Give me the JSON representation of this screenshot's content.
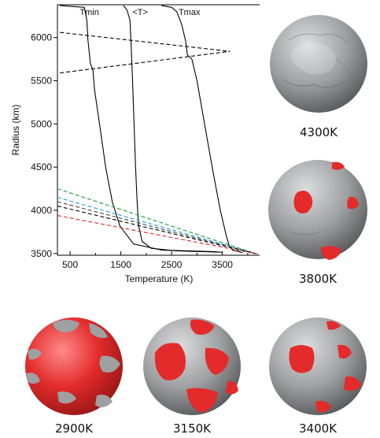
{
  "chart_data": {
    "type": "line",
    "xlabel": "Temperature (K)",
    "ylabel": "Radius (km)",
    "xlim": [
      250,
      4250
    ],
    "ylim": [
      3480,
      6380
    ],
    "x_ticks": [
      500,
      1500,
      2500,
      3500
    ],
    "x_tick_labels": [
      "500",
      "1500",
      "2500",
      "3500"
    ],
    "x_minor_ticks": [
      1000,
      2000,
      3000,
      4000
    ],
    "y_ticks": [
      3500,
      4000,
      4500,
      5000,
      5500,
      6000
    ],
    "y_tick_labels": [
      "3500",
      "4000",
      "4500",
      "5000",
      "5500",
      "6000"
    ],
    "grid": false,
    "series": [
      {
        "name": "Tmin",
        "label_at": [
          880,
          6300
        ],
        "style": "solid",
        "color": "#000000",
        "points": [
          [
            300,
            6370
          ],
          [
            780,
            6350
          ],
          [
            830,
            6200
          ],
          [
            850,
            5980
          ],
          [
            900,
            5700
          ],
          [
            950,
            5620
          ],
          [
            980,
            5400
          ],
          [
            1080,
            5000
          ],
          [
            1200,
            4500
          ],
          [
            1330,
            4100
          ],
          [
            1480,
            3820
          ],
          [
            1750,
            3610
          ],
          [
            2300,
            3540
          ],
          [
            3400,
            3520
          ]
        ]
      },
      {
        "name": "<T>",
        "label_at": [
          1880,
          6300
        ],
        "style": "solid",
        "color": "#000000",
        "points": [
          [
            1550,
            6370
          ],
          [
            1620,
            6320
          ],
          [
            1680,
            6200
          ],
          [
            1700,
            5950
          ],
          [
            1730,
            5500
          ],
          [
            1760,
            5000
          ],
          [
            1790,
            4500
          ],
          [
            1820,
            4100
          ],
          [
            1850,
            3820
          ],
          [
            1920,
            3640
          ],
          [
            2100,
            3560
          ],
          [
            2600,
            3530
          ],
          [
            3500,
            3515
          ]
        ]
      },
      {
        "name": "Tmax",
        "label_at": [
          2850,
          6300
        ],
        "style": "solid",
        "color": "#000000",
        "points": [
          [
            2300,
            6370
          ],
          [
            2500,
            6350
          ],
          [
            2600,
            6300
          ],
          [
            2700,
            6150
          ],
          [
            2780,
            5950
          ],
          [
            2810,
            5800
          ],
          [
            2900,
            5750
          ],
          [
            3000,
            5500
          ],
          [
            3150,
            5000
          ],
          [
            3300,
            4500
          ],
          [
            3460,
            4000
          ],
          [
            3580,
            3700
          ],
          [
            3640,
            3580
          ],
          [
            3700,
            3540
          ],
          [
            3900,
            3510
          ]
        ]
      },
      {
        "style": "dashed",
        "color": "#000000",
        "points": [
          [
            300,
            6060
          ],
          [
            3650,
            5840
          ]
        ]
      },
      {
        "style": "dashed",
        "color": "#000000",
        "points": [
          [
            300,
            5590
          ],
          [
            3650,
            5840
          ]
        ]
      },
      {
        "style": "dashed",
        "color": "#1a9a3a",
        "points": [
          [
            250,
            4250
          ],
          [
            4150,
            3500
          ]
        ]
      },
      {
        "style": "dashed",
        "color": "#2b9bd6",
        "points": [
          [
            250,
            4150
          ],
          [
            4150,
            3500
          ]
        ]
      },
      {
        "style": "dashed",
        "color": "#444444",
        "points": [
          [
            250,
            4100
          ],
          [
            4150,
            3500
          ]
        ]
      },
      {
        "style": "dashed",
        "color": "#000000",
        "points": [
          [
            250,
            4050
          ],
          [
            4150,
            3500
          ]
        ]
      },
      {
        "style": "dashed",
        "color": "#d22a2a",
        "points": [
          [
            250,
            3940
          ],
          [
            4200,
            3495
          ]
        ]
      }
    ]
  },
  "spheres": [
    {
      "caption": "4300K",
      "red_fraction": 0.0,
      "palette": {
        "gray": "#9a9b9d",
        "red": "#e32b2b"
      }
    },
    {
      "caption": "3800K",
      "red_fraction": 0.1,
      "palette": {
        "gray": "#9a9b9d",
        "red": "#e32b2b"
      }
    },
    {
      "caption": "2900K",
      "red_fraction": 0.8,
      "palette": {
        "gray": "#9a9b9d",
        "red": "#e32b2b"
      }
    },
    {
      "caption": "3150K",
      "red_fraction": 0.45,
      "palette": {
        "gray": "#9a9b9d",
        "red": "#e32b2b"
      }
    },
    {
      "caption": "3400K",
      "red_fraction": 0.25,
      "palette": {
        "gray": "#9a9b9d",
        "red": "#e32b2b"
      }
    }
  ]
}
